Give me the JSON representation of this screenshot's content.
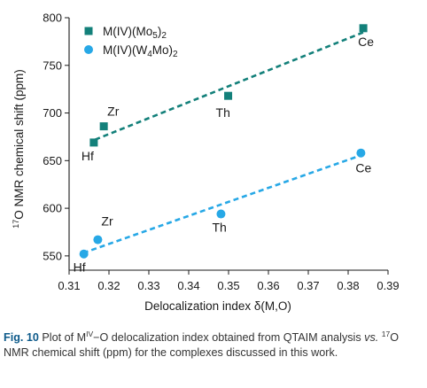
{
  "chart_data": {
    "type": "scatter",
    "xlabel": "Delocalization index δ(M,O)",
    "ylabel_sup": "17",
    "ylabel_main": "O NMR chemical shift (ppm)",
    "xlim": [
      0.31,
      0.39
    ],
    "ylim": [
      535,
      800
    ],
    "xticks": [
      0.31,
      0.32,
      0.33,
      0.34,
      0.35,
      0.36,
      0.37,
      0.38,
      0.39
    ],
    "xtick_labels": [
      "0.31",
      "0.32",
      "0.33",
      "0.34",
      "0.35",
      "0.36",
      "0.37",
      "0.38",
      "0.39"
    ],
    "yticks": [
      550,
      600,
      650,
      700,
      750,
      800
    ],
    "ytick_labels": [
      "550",
      "600",
      "650",
      "700",
      "750",
      "800"
    ],
    "legend_position": "top-left",
    "grid": false,
    "series": [
      {
        "legend_parts": [
          {
            "t": "M(IV)(Mo",
            "s": ""
          },
          {
            "t": "5",
            "s": "sub"
          },
          {
            "t": ")",
            "s": ""
          },
          {
            "t": "2",
            "s": "sub"
          }
        ],
        "marker": "square",
        "color": "#13807a",
        "trendline": [
          [
            0.3165,
            672
          ],
          [
            0.384,
            785
          ]
        ],
        "points": [
          {
            "label": "Hf",
            "x": 0.3162,
            "y": 669
          },
          {
            "label": "Zr",
            "x": 0.3187,
            "y": 686
          },
          {
            "label": "Th",
            "x": 0.3499,
            "y": 718
          },
          {
            "label": "Ce",
            "x": 0.3838,
            "y": 789
          }
        ]
      },
      {
        "legend_parts": [
          {
            "t": "M(IV)(W",
            "s": ""
          },
          {
            "t": "4",
            "s": "sub"
          },
          {
            "t": "Mo)",
            "s": ""
          },
          {
            "t": "2",
            "s": "sub"
          }
        ],
        "marker": "circle",
        "color": "#27a8e6",
        "trendline": [
          [
            0.3135,
            553
          ],
          [
            0.3835,
            656
          ]
        ],
        "points": [
          {
            "label": "Hf",
            "x": 0.3137,
            "y": 552
          },
          {
            "label": "Zr",
            "x": 0.3172,
            "y": 567
          },
          {
            "label": "Th",
            "x": 0.3481,
            "y": 594
          },
          {
            "label": "Ce",
            "x": 0.3832,
            "y": 658
          }
        ]
      }
    ]
  },
  "caption": {
    "fig_label": "Fig. 10",
    "text_1": "  Plot of M",
    "sup_1": "IV",
    "text_2": "−O delocalization index obtained from QTAIM analysis ",
    "text_vs": "vs.",
    "text_3": " ",
    "sup_2": "17",
    "text_4": "O NMR chemical shift (ppm) for the complexes discussed in this work."
  }
}
